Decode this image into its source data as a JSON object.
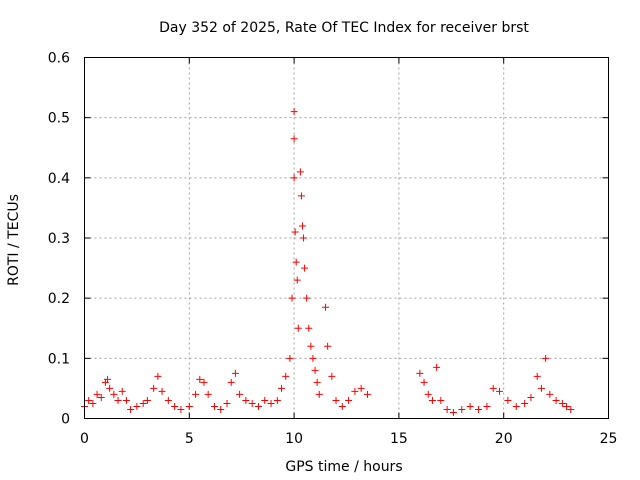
{
  "chart_data": {
    "type": "scatter",
    "title": "Day 352 of 2025, Rate Of TEC Index for receiver brst",
    "xlabel": "GPS time / hours",
    "ylabel": "ROTI / TECUs",
    "xlim": [
      0,
      25
    ],
    "ylim": [
      0,
      0.6
    ],
    "xticks": [
      0,
      5,
      10,
      15,
      20,
      25
    ],
    "yticks": [
      0,
      0.1,
      0.2,
      0.3,
      0.4,
      0.5,
      0.6
    ],
    "grid": true,
    "marker": "plus",
    "color": "#ff0000",
    "series": [
      {
        "x": [
          0.0,
          0.2,
          0.4,
          0.6,
          0.8,
          1.0,
          1.1,
          1.2,
          1.4,
          1.6,
          1.8,
          2.0,
          2.2,
          2.5,
          2.8,
          3.0,
          3.3,
          3.5,
          3.7,
          4.0,
          4.3,
          4.6,
          5.0,
          5.3,
          5.5,
          5.7,
          5.9,
          6.2,
          6.5,
          6.8,
          7.0,
          7.2,
          7.4,
          7.7,
          8.0,
          8.3,
          8.6,
          8.9,
          9.2,
          9.4,
          9.6,
          9.8,
          9.9,
          10.0,
          10.0,
          10.0,
          10.05,
          10.1,
          10.15,
          10.2,
          10.3,
          10.35,
          10.4,
          10.45,
          10.5,
          10.6,
          10.7,
          10.8,
          10.9,
          11.0,
          11.1,
          11.2,
          11.5,
          11.6,
          11.8,
          12.0,
          12.3,
          12.6,
          12.9,
          13.2,
          13.5,
          16.0,
          16.2,
          16.4,
          16.6,
          16.8,
          17.0,
          17.3,
          17.6,
          18.0,
          18.4,
          18.8,
          19.2,
          19.5,
          19.8,
          20.2,
          20.6,
          21.0,
          21.3,
          21.6,
          21.8,
          22.0,
          22.2,
          22.5,
          22.8,
          23.0,
          23.2
        ],
        "y": [
          0.02,
          0.03,
          0.025,
          0.04,
          0.035,
          0.06,
          0.065,
          0.05,
          0.04,
          0.03,
          0.045,
          0.03,
          0.015,
          0.02,
          0.025,
          0.03,
          0.05,
          0.07,
          0.045,
          0.03,
          0.02,
          0.015,
          0.02,
          0.04,
          0.065,
          0.06,
          0.04,
          0.02,
          0.015,
          0.025,
          0.06,
          0.075,
          0.04,
          0.03,
          0.025,
          0.02,
          0.03,
          0.025,
          0.03,
          0.05,
          0.07,
          0.1,
          0.2,
          0.51,
          0.465,
          0.4,
          0.31,
          0.26,
          0.23,
          0.15,
          0.41,
          0.37,
          0.32,
          0.3,
          0.25,
          0.2,
          0.15,
          0.12,
          0.1,
          0.08,
          0.06,
          0.04,
          0.185,
          0.12,
          0.07,
          0.03,
          0.02,
          0.03,
          0.045,
          0.05,
          0.04,
          0.075,
          0.06,
          0.04,
          0.03,
          0.085,
          0.03,
          0.015,
          0.01,
          0.015,
          0.02,
          0.015,
          0.02,
          0.05,
          0.045,
          0.03,
          0.02,
          0.025,
          0.035,
          0.07,
          0.05,
          0.1,
          0.04,
          0.03,
          0.025,
          0.02,
          0.015
        ]
      }
    ]
  }
}
